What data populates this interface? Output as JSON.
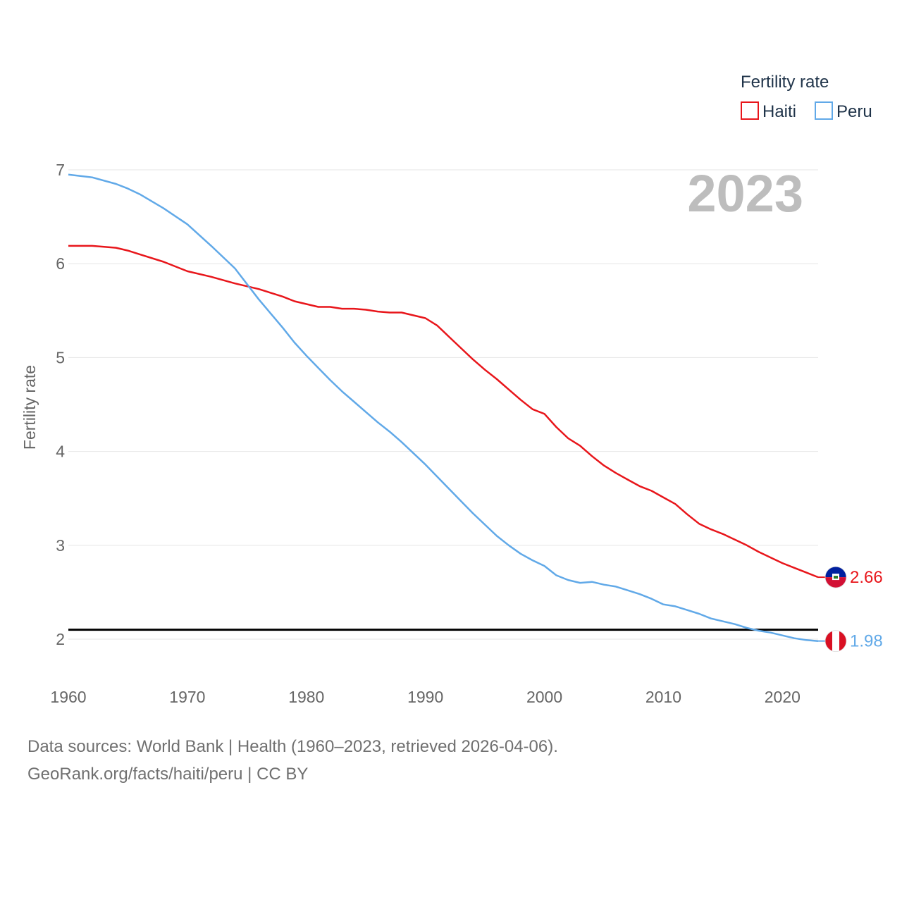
{
  "chart_data": {
    "type": "line",
    "ylabel": "Fertility rate",
    "xlabel": "",
    "xlim": [
      1960,
      2023
    ],
    "ylim": [
      1.6,
      7.0
    ],
    "year_label": "2023",
    "legend": {
      "title": "Fertility rate",
      "position": "top-right"
    },
    "x_ticks": [
      {
        "value": 1960,
        "label": "1960"
      },
      {
        "value": 1970,
        "label": "1970"
      },
      {
        "value": 1980,
        "label": "1980"
      },
      {
        "value": 1990,
        "label": "1990"
      },
      {
        "value": 2000,
        "label": "2000"
      },
      {
        "value": 2010,
        "label": "2010"
      },
      {
        "value": 2020,
        "label": "2020"
      }
    ],
    "y_ticks": [
      {
        "value": 2,
        "label": "2"
      },
      {
        "value": 3,
        "label": "3"
      },
      {
        "value": 4,
        "label": "4"
      },
      {
        "value": 5,
        "label": "5"
      },
      {
        "value": 6,
        "label": "6"
      },
      {
        "value": 7,
        "label": "7"
      }
    ],
    "reference_line": {
      "value": 2.1,
      "color": "#000000"
    },
    "x": [
      1960,
      1962,
      1964,
      1965,
      1966,
      1968,
      1970,
      1972,
      1974,
      1976,
      1978,
      1979,
      1980,
      1981,
      1982,
      1983,
      1984,
      1985,
      1986,
      1987,
      1988,
      1990,
      1991,
      1992,
      1993,
      1994,
      1995,
      1996,
      1997,
      1998,
      1999,
      2000,
      2001,
      2002,
      2003,
      2004,
      2005,
      2006,
      2007,
      2008,
      2009,
      2010,
      2011,
      2012,
      2013,
      2014,
      2015,
      2016,
      2017,
      2018,
      2019,
      2020,
      2021,
      2022,
      2023
    ],
    "series": [
      {
        "name": "Haiti",
        "color": "#e8161b",
        "end_label": "2.66",
        "values": [
          6.19,
          6.19,
          6.17,
          6.14,
          6.1,
          6.02,
          5.92,
          5.86,
          5.79,
          5.73,
          5.65,
          5.6,
          5.57,
          5.54,
          5.54,
          5.52,
          5.52,
          5.51,
          5.49,
          5.48,
          5.48,
          5.42,
          5.34,
          5.22,
          5.1,
          4.98,
          4.87,
          4.77,
          4.66,
          4.55,
          4.45,
          4.4,
          4.26,
          4.14,
          4.06,
          3.95,
          3.85,
          3.77,
          3.7,
          3.63,
          3.58,
          3.51,
          3.44,
          3.33,
          3.23,
          3.17,
          3.12,
          3.06,
          3.0,
          2.93,
          2.87,
          2.81,
          2.76,
          2.71,
          2.66
        ]
      },
      {
        "name": "Peru",
        "color": "#61a9e8",
        "end_label": "1.98",
        "values": [
          6.95,
          6.92,
          6.85,
          6.8,
          6.74,
          6.59,
          6.42,
          6.19,
          5.95,
          5.62,
          5.32,
          5.16,
          5.02,
          4.89,
          4.76,
          4.64,
          4.53,
          4.42,
          4.31,
          4.21,
          4.1,
          3.86,
          3.73,
          3.6,
          3.47,
          3.34,
          3.22,
          3.1,
          3.0,
          2.91,
          2.84,
          2.78,
          2.68,
          2.63,
          2.6,
          2.61,
          2.58,
          2.56,
          2.52,
          2.48,
          2.43,
          2.37,
          2.35,
          2.31,
          2.27,
          2.22,
          2.19,
          2.16,
          2.12,
          2.09,
          2.07,
          2.04,
          2.01,
          1.99,
          1.98
        ]
      }
    ]
  },
  "source": {
    "line1": "Data sources: World Bank | Health (1960–2023, retrieved 2026-04-06).",
    "line2": "GeoRank.org/facts/haiti/peru | CC BY"
  }
}
